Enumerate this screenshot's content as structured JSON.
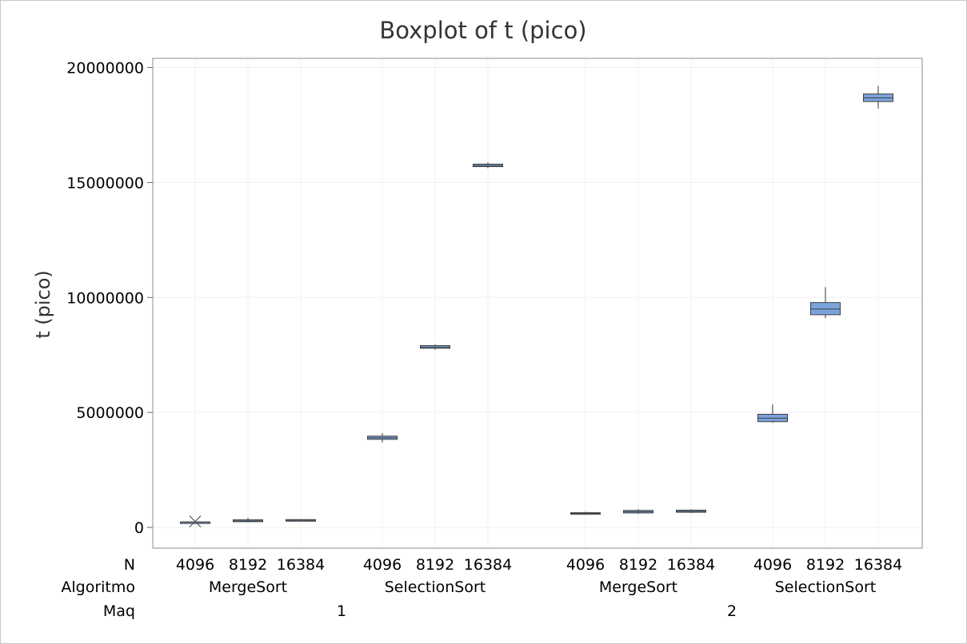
{
  "chart_data": {
    "type": "boxplot",
    "title": "Boxplot of t (pico)",
    "ylabel": "t (pico)",
    "ylim": [
      -900000,
      20400000
    ],
    "yticks": [
      0,
      5000000,
      10000000,
      15000000,
      20000000
    ],
    "ytick_labels": [
      "0",
      "5000000",
      "10000000",
      "15000000",
      "20000000"
    ],
    "grid": true,
    "box_color": "#7ba3dc",
    "grouping_levels": [
      {
        "name": "N"
      },
      {
        "name": "Algoritmo"
      },
      {
        "name": "Maq"
      }
    ],
    "groups": [
      {
        "maq": "1",
        "algoritmos": [
          {
            "name": "MergeSort",
            "boxes": [
              {
                "n": "4096",
                "min": 200000,
                "q1": 200000,
                "median": 230000,
                "q3": 240000,
                "max": 260000,
                "outliers": [
                  260000
                ]
              },
              {
                "n": "8192",
                "min": 220000,
                "q1": 250000,
                "median": 280000,
                "q3": 330000,
                "max": 420000,
                "outliers": []
              },
              {
                "n": "16384",
                "min": 270000,
                "q1": 280000,
                "median": 310000,
                "q3": 340000,
                "max": 360000,
                "outliers": []
              }
            ]
          },
          {
            "name": "SelectionSort",
            "boxes": [
              {
                "n": "4096",
                "min": 3700000,
                "q1": 3830000,
                "median": 3900000,
                "q3": 3970000,
                "max": 4100000,
                "outliers": []
              },
              {
                "n": "8192",
                "min": 7730000,
                "q1": 7790000,
                "median": 7840000,
                "q3": 7910000,
                "max": 7960000,
                "outliers": []
              },
              {
                "n": "16384",
                "min": 15620000,
                "q1": 15690000,
                "median": 15740000,
                "q3": 15800000,
                "max": 15870000,
                "outliers": []
              }
            ]
          }
        ]
      },
      {
        "maq": "2",
        "algoritmos": [
          {
            "name": "MergeSort",
            "boxes": [
              {
                "n": "4096",
                "min": 580000,
                "q1": 590000,
                "median": 610000,
                "q3": 640000,
                "max": 680000,
                "outliers": []
              },
              {
                "n": "8192",
                "min": 590000,
                "q1": 630000,
                "median": 680000,
                "q3": 740000,
                "max": 800000,
                "outliers": []
              },
              {
                "n": "16384",
                "min": 630000,
                "q1": 660000,
                "median": 700000,
                "q3": 750000,
                "max": 790000,
                "outliers": []
              }
            ]
          },
          {
            "name": "SelectionSort",
            "boxes": [
              {
                "n": "4096",
                "min": 4550000,
                "q1": 4600000,
                "median": 4750000,
                "q3": 4920000,
                "max": 5350000,
                "outliers": []
              },
              {
                "n": "8192",
                "min": 9100000,
                "q1": 9250000,
                "median": 9500000,
                "q3": 9780000,
                "max": 10450000,
                "outliers": []
              },
              {
                "n": "16384",
                "min": 18220000,
                "q1": 18520000,
                "median": 18680000,
                "q3": 18850000,
                "max": 19200000,
                "outliers": []
              }
            ]
          }
        ]
      }
    ]
  }
}
